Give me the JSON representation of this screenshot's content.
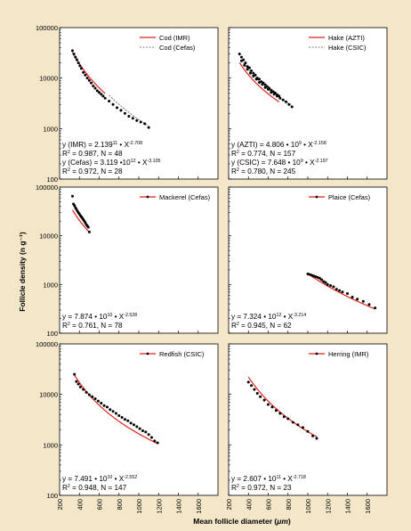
{
  "figure": {
    "ylabel": "Follicle density (n g⁻¹)",
    "xlabel": "Mean follicle diameter (",
    "xlabel_unit": "μm",
    "xlabel_end": ")",
    "y_ticks": [
      "100000",
      "10000",
      "1000",
      "100"
    ],
    "x_ticks": [
      "200",
      "400",
      "600",
      "800",
      "1000",
      "1200",
      "1400",
      "1600"
    ]
  },
  "colors": {
    "fit": "#e0211b",
    "alt_fit": "#555555",
    "points": "#000000",
    "frame_bg": "#f3e6c9"
  },
  "chart_data": [
    {
      "type": "scatter",
      "panel": "cod",
      "x_scale": "linear",
      "y_scale": "log",
      "xlim": [
        200,
        1800
      ],
      "ylim": [
        100,
        100000
      ],
      "legend_placement": "top-right",
      "series": [
        {
          "name": "Cod (IMR)",
          "line": "solid-red",
          "fit_a": 213900000000.0,
          "fit_b": -2.708,
          "x": [
            330,
            345,
            360,
            375,
            390,
            405,
            420,
            440,
            460,
            480,
            500,
            520,
            540,
            560,
            580,
            600,
            620,
            640,
            660
          ],
          "y": [
            35000,
            30000,
            26000,
            23000,
            20000,
            17500,
            15500,
            13000,
            11500,
            10000,
            9000,
            8000,
            7000,
            6300,
            5600,
            5200,
            4800,
            4400,
            4000
          ]
        },
        {
          "name": "Cod (Cefas)",
          "line": "dotted",
          "fit_a": 3119000000000.0,
          "fit_b": -3.105,
          "x": [
            700,
            740,
            780,
            820,
            860,
            900,
            940,
            980,
            1020,
            1060,
            1100
          ],
          "y": [
            3500,
            3000,
            2600,
            2300,
            2000,
            1750,
            1600,
            1450,
            1350,
            1250,
            1050
          ]
        }
      ],
      "equations": [
        {
          "lhs": "y (IMR) = 2.139",
          "exp1": "11",
          "mid": " • X",
          "exp2": "-2.708"
        },
        {
          "lhs": "R",
          "sq": "2",
          "rest": " = 0.987, N = 48"
        },
        {
          "lhs": "y (Cefas) = 3.119 •10",
          "exp1": "12",
          "mid": " • X",
          "exp2": "-3.105"
        },
        {
          "lhs": "R",
          "sq": "2",
          "rest": " = 0.972, N = 28"
        }
      ]
    },
    {
      "type": "scatter",
      "panel": "hake",
      "x_scale": "linear",
      "y_scale": "log",
      "xlim": [
        200,
        1800
      ],
      "ylim": [
        100,
        100000
      ],
      "legend_placement": "top-right",
      "series": [
        {
          "name": "Hake (AZTI)",
          "line": "solid-red",
          "fit_a": 4806000000.0,
          "fit_b": -2.158,
          "x": [
            310,
            330,
            350,
            370,
            390,
            410,
            430,
            450,
            470,
            490,
            510,
            530,
            550,
            570,
            590,
            610,
            630,
            650,
            670,
            690,
            710
          ],
          "y": [
            30000,
            26000,
            23000,
            20000,
            17000,
            16000,
            14000,
            12500,
            11500,
            10000,
            9500,
            8500,
            8000,
            7400,
            6800,
            6300,
            5800,
            5400,
            5100,
            4700,
            4400
          ]
        },
        {
          "name": "Hake (CSIC)",
          "line": "dotted",
          "fit_a": 7648000000.0,
          "fit_b": -2.197,
          "x": [
            330,
            360,
            390,
            420,
            450,
            480,
            510,
            540,
            570,
            600,
            630,
            660,
            690,
            720,
            750,
            780,
            810,
            840
          ],
          "y": [
            22000,
            18000,
            15000,
            12500,
            11000,
            9500,
            8200,
            7500,
            6500,
            6000,
            5200,
            4800,
            4400,
            4000,
            3700,
            3400,
            3000,
            2700
          ]
        }
      ],
      "equations": [
        {
          "lhs": "y (AZTI) = 4.806 • 10",
          "exp1": "9",
          "mid": " • X",
          "exp2": "-2.158"
        },
        {
          "lhs": "R",
          "sq": "2",
          "rest": " = 0.774, N = 157"
        },
        {
          "lhs": "y (CSIC) = 7.648 • 10",
          "exp1": "9",
          "mid": " • X",
          "exp2": "-2.197"
        },
        {
          "lhs": "R",
          "sq": "2",
          "rest": " = 0.780, N = 245"
        }
      ]
    },
    {
      "type": "scatter",
      "panel": "mackerel",
      "x_scale": "linear",
      "y_scale": "log",
      "xlim": [
        200,
        1800
      ],
      "ylim": [
        100,
        100000
      ],
      "legend_placement": "top-right",
      "series": [
        {
          "name": "Mackerel (Cefas)",
          "line": "solid-red",
          "fit_a": 78740000000.0,
          "fit_b": -2.528,
          "x": [
            330,
            340,
            350,
            360,
            370,
            380,
            390,
            400,
            410,
            420,
            430,
            440,
            450,
            460,
            470,
            480,
            490,
            500
          ],
          "y": [
            65000,
            45000,
            42000,
            38000,
            35000,
            32000,
            30000,
            28000,
            26000,
            24500,
            23000,
            21500,
            20000,
            18500,
            17000,
            16000,
            15000,
            12000
          ]
        }
      ],
      "equations": [
        {
          "lhs": "y = 7.874 • 10",
          "exp1": "10",
          "mid": " • X",
          "exp2": "-2.528"
        },
        {
          "lhs": "R",
          "sq": "2",
          "rest": " = 0.761, N = 78"
        }
      ]
    },
    {
      "type": "scatter",
      "panel": "plaice",
      "x_scale": "linear",
      "y_scale": "log",
      "xlim": [
        200,
        1800
      ],
      "ylim": [
        100,
        100000
      ],
      "legend_placement": "top-right",
      "series": [
        {
          "name": "Plaice (Cefas)",
          "line": "solid-red",
          "fit_a": 7324000000000.0,
          "fit_b": -3.214,
          "x": [
            1000,
            1020,
            1040,
            1060,
            1080,
            1100,
            1120,
            1140,
            1160,
            1180,
            1200,
            1230,
            1260,
            1290,
            1320,
            1350,
            1400,
            1450,
            1500,
            1560,
            1620,
            1680
          ],
          "y": [
            1650,
            1600,
            1550,
            1500,
            1450,
            1400,
            1350,
            1250,
            1150,
            1100,
            1000,
            950,
            900,
            800,
            750,
            700,
            650,
            550,
            500,
            450,
            390,
            330
          ]
        }
      ],
      "equations": [
        {
          "lhs": "y = 7.324 • 10",
          "exp1": "12",
          "mid": " • X",
          "exp2": "-3.214"
        },
        {
          "lhs": "R",
          "sq": "2",
          "rest": " = 0.945, N = 62"
        }
      ]
    },
    {
      "type": "scatter",
      "panel": "redfish",
      "x_scale": "linear",
      "y_scale": "log",
      "xlim": [
        200,
        1800
      ],
      "ylim": [
        100,
        100000
      ],
      "legend_placement": "top-right",
      "series": [
        {
          "name": "Redfish (CSIC)",
          "line": "solid-red",
          "fit_a": 74910000000.0,
          "fit_b": -2.552,
          "x": [
            350,
            370,
            390,
            410,
            440,
            470,
            500,
            530,
            560,
            590,
            620,
            650,
            680,
            710,
            740,
            770,
            800,
            830,
            860,
            890,
            920,
            950,
            980,
            1010,
            1040,
            1070,
            1100,
            1130,
            1160,
            1190
          ],
          "y": [
            25000,
            18000,
            16000,
            14000,
            12500,
            11000,
            9800,
            9000,
            8200,
            7400,
            6700,
            6000,
            5600,
            5000,
            4600,
            4200,
            3800,
            3500,
            3200,
            3000,
            2700,
            2500,
            2300,
            2100,
            1900,
            1800,
            1600,
            1400,
            1200,
            1100
          ]
        }
      ],
      "equations": [
        {
          "lhs": "y = 7.491 • 10",
          "exp1": "10",
          "mid": " • X",
          "exp2": "-2.552"
        },
        {
          "lhs": "R",
          "sq": "2",
          "rest": " = 0.948, N = 147"
        }
      ]
    },
    {
      "type": "scatter",
      "panel": "herring",
      "x_scale": "linear",
      "y_scale": "log",
      "xlim": [
        200,
        1800
      ],
      "ylim": [
        100,
        100000
      ],
      "legend_placement": "top-right",
      "series": [
        {
          "name": "Herring (IMR)",
          "line": "solid-red",
          "fit_a": 260700000000.0,
          "fit_b": -2.718,
          "x": [
            400,
            430,
            460,
            490,
            520,
            560,
            600,
            640,
            680,
            720,
            760,
            800,
            850,
            900,
            950,
            1000,
            1050,
            1090
          ],
          "y": [
            17500,
            15000,
            12500,
            10500,
            9000,
            7700,
            6300,
            5600,
            4800,
            4200,
            3600,
            3300,
            2800,
            2500,
            2200,
            1850,
            1500,
            1350
          ]
        }
      ],
      "equations": [
        {
          "lhs": "y = 2.607 • 10",
          "exp1": "11",
          "mid": " • X",
          "exp2": "-2.718"
        },
        {
          "lhs": "R",
          "sq": "2",
          "rest": " = 0.972, N = 23"
        }
      ]
    }
  ]
}
